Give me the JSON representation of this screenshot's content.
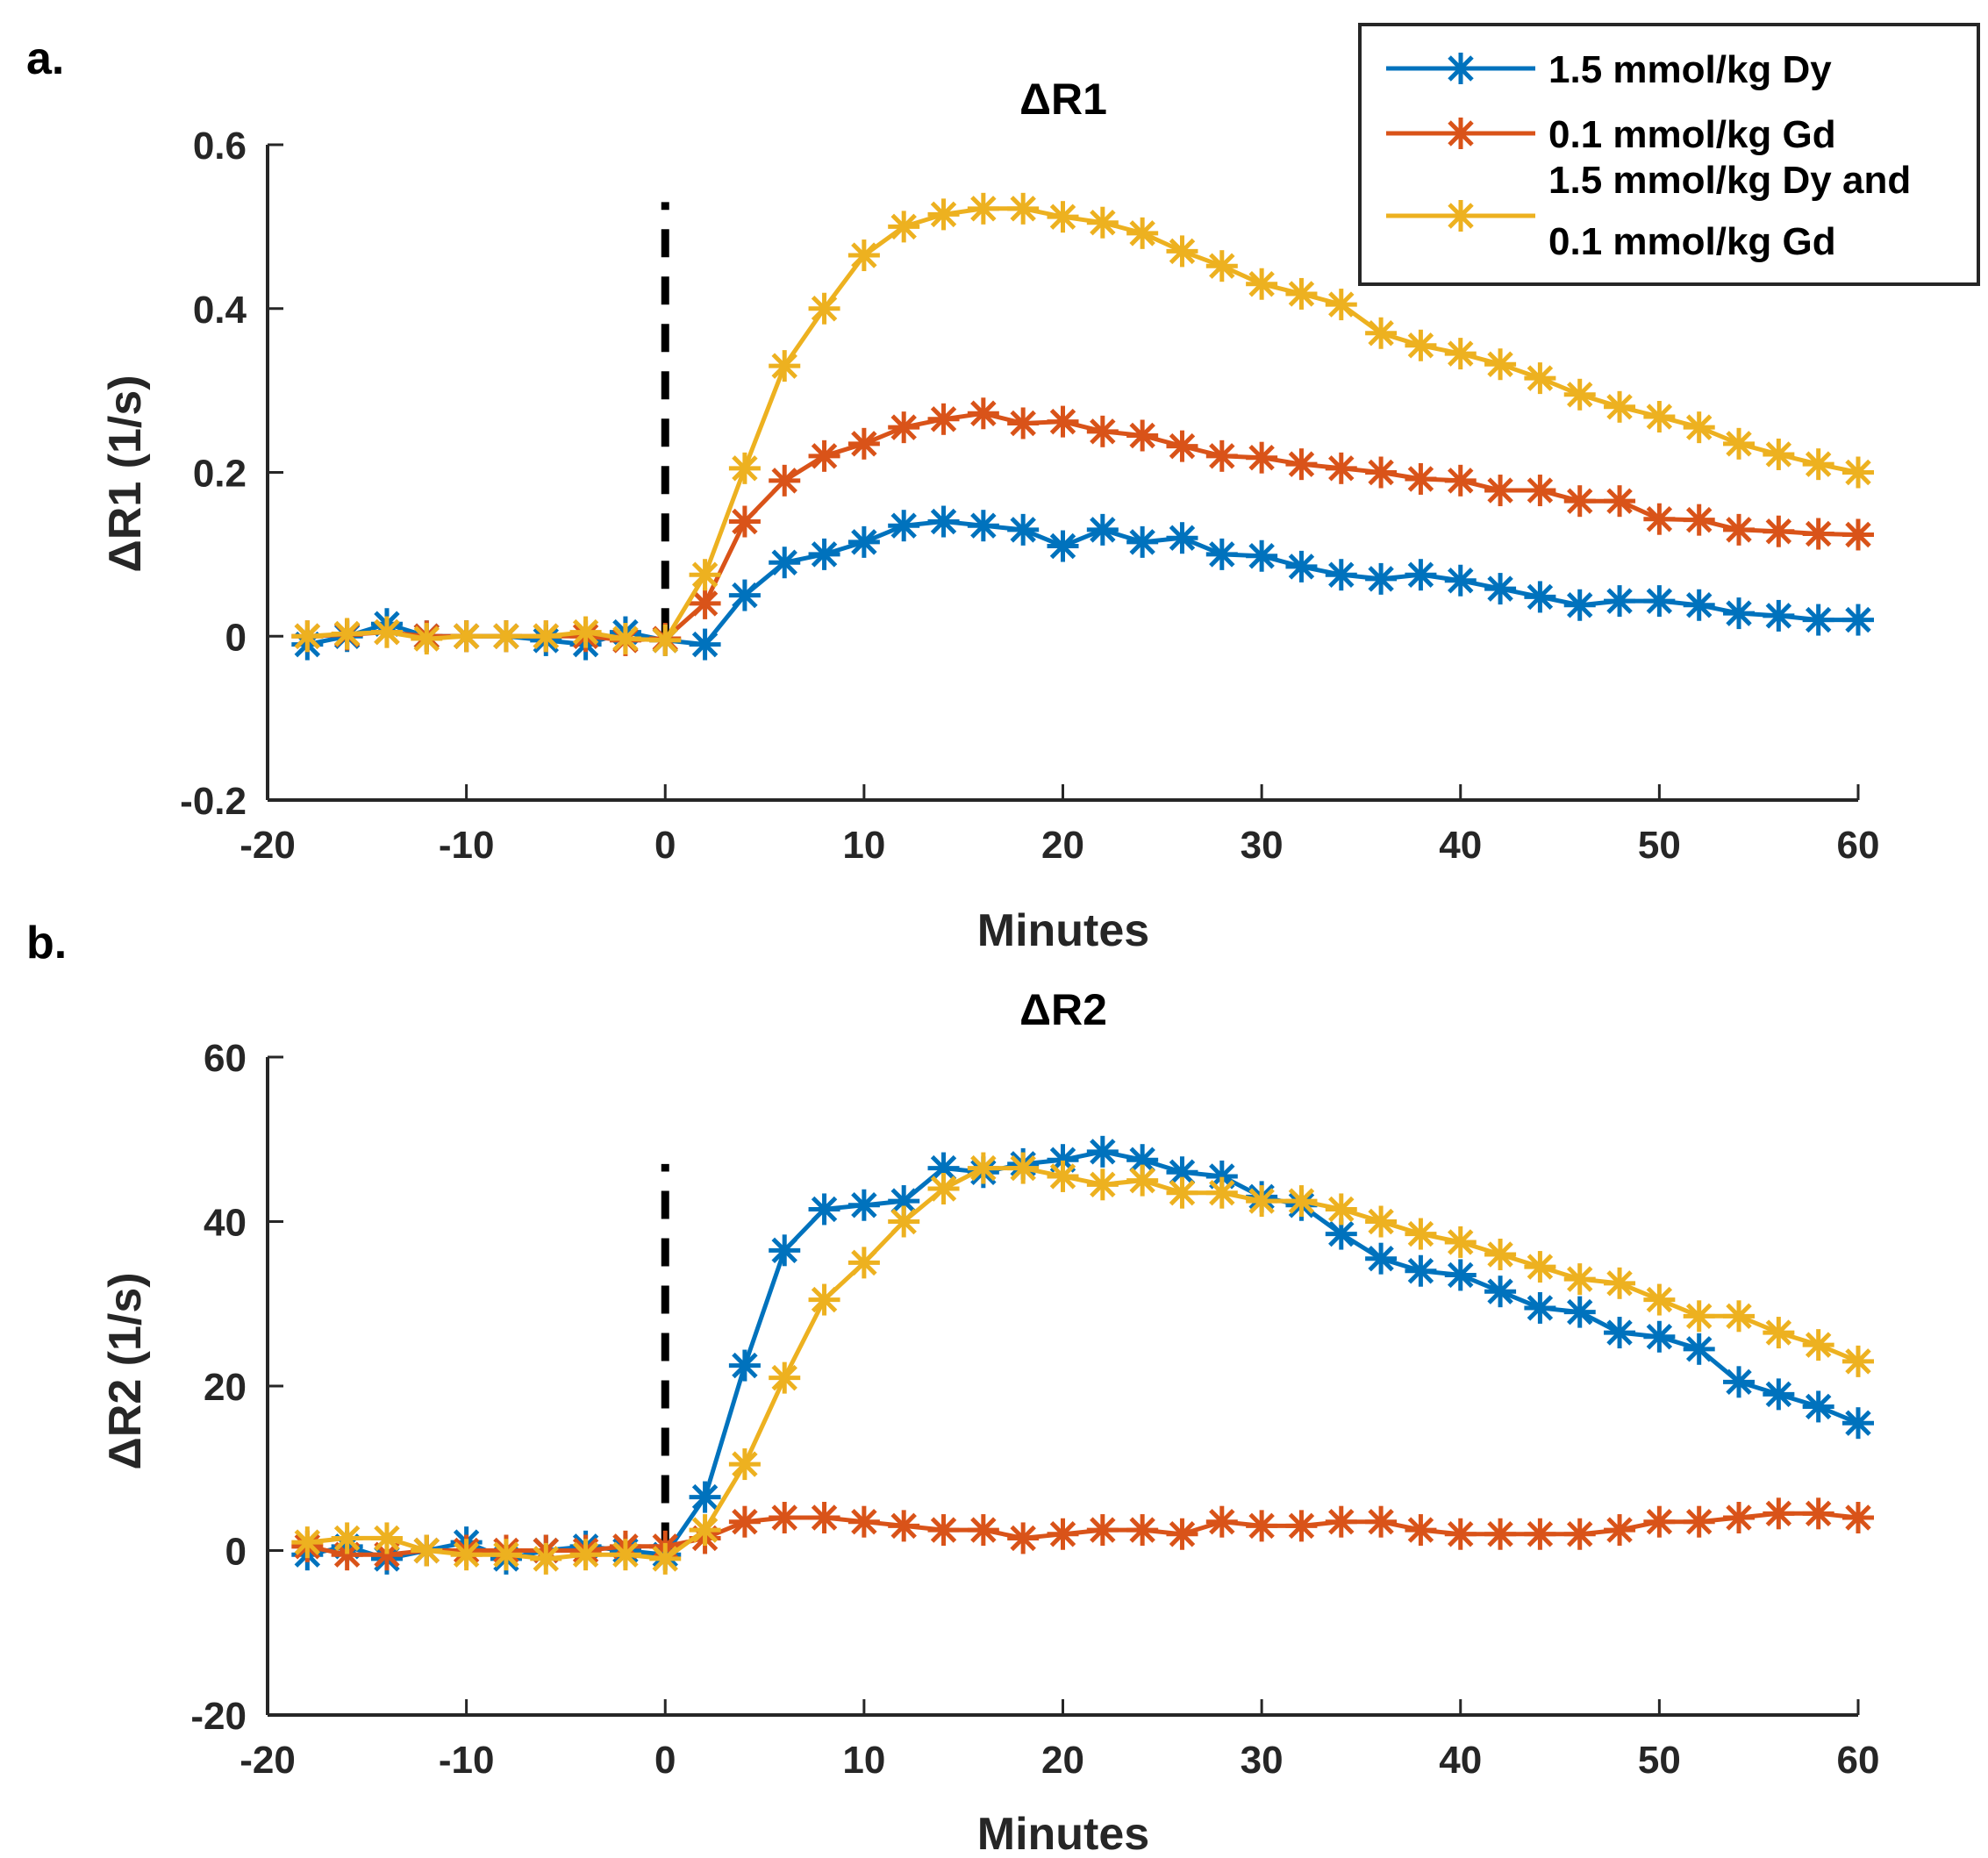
{
  "chart_data": [
    {
      "type": "line",
      "panel_label": "a.",
      "title": "ΔR1",
      "xlabel": "Minutes",
      "ylabel": "ΔR1 (1/s)",
      "xlim": [
        -20,
        60
      ],
      "ylim": [
        -0.2,
        0.6
      ],
      "xticks": [
        -20,
        -10,
        0,
        10,
        20,
        30,
        40,
        50,
        60
      ],
      "xtick_labels": [
        "-20",
        "-10",
        "0",
        "10",
        "20",
        "30",
        "40",
        "50",
        "60"
      ],
      "yticks": [
        -0.2,
        0,
        0.2,
        0.4,
        0.6
      ],
      "ytick_labels": [
        "-0.2",
        "0",
        "0.2",
        "0.4",
        "0.6"
      ],
      "grid": false,
      "marker": "asterisk",
      "annotation": {
        "type": "vertical-dashed-line",
        "x": 0,
        "y_from": 0,
        "y_to": 0.53
      },
      "x": [
        -18,
        -16,
        -14,
        -12,
        -10,
        -8,
        -6,
        -4,
        -2,
        0,
        2,
        4,
        6,
        8,
        10,
        12,
        14,
        16,
        18,
        20,
        22,
        24,
        26,
        28,
        30,
        32,
        34,
        36,
        38,
        40,
        42,
        44,
        46,
        48,
        50,
        52,
        54,
        56,
        58,
        60
      ],
      "series": [
        {
          "name": "1.5 mmol/kg Dy",
          "color": "#0072BD",
          "values": [
            -0.01,
            0,
            0.015,
            0,
            0,
            0,
            -0.005,
            -0.01,
            0.005,
            -0.005,
            -0.01,
            0.05,
            0.09,
            0.1,
            0.115,
            0.135,
            0.14,
            0.135,
            0.13,
            0.11,
            0.13,
            0.115,
            0.12,
            0.1,
            0.098,
            0.085,
            0.075,
            0.07,
            0.075,
            0.068,
            0.058,
            0.048,
            0.038,
            0.043,
            0.043,
            0.038,
            0.028,
            0.025,
            0.02,
            0.02
          ]
        },
        {
          "name": "0.1 mmol/kg Gd",
          "color": "#D95319",
          "values": [
            0,
            0.002,
            0.005,
            0,
            0,
            0,
            0,
            0,
            -0.005,
            -0.003,
            0.04,
            0.14,
            0.19,
            0.22,
            0.235,
            0.255,
            0.265,
            0.272,
            0.26,
            0.262,
            0.25,
            0.245,
            0.232,
            0.22,
            0.218,
            0.21,
            0.205,
            0.2,
            0.192,
            0.19,
            0.178,
            0.178,
            0.165,
            0.165,
            0.143,
            0.142,
            0.13,
            0.128,
            0.125,
            0.124
          ]
        },
        {
          "name": "1.5 mmol/kg Dy and 0.1 mmol/kg Gd",
          "color": "#EDB120",
          "values": [
            0,
            0.003,
            0.005,
            -0.003,
            0,
            0,
            0,
            0.005,
            -0.003,
            -0.005,
            0.075,
            0.205,
            0.33,
            0.4,
            0.465,
            0.5,
            0.515,
            0.522,
            0.522,
            0.512,
            0.505,
            0.492,
            0.47,
            0.452,
            0.43,
            0.418,
            0.405,
            0.37,
            0.355,
            0.345,
            0.332,
            0.315,
            0.295,
            0.28,
            0.268,
            0.255,
            0.235,
            0.222,
            0.21,
            0.2
          ]
        }
      ],
      "legend": {
        "placement": "top-right",
        "entries": [
          {
            "lines": [
              "1.5 mmol/kg Dy"
            ],
            "color": "#0072BD"
          },
          {
            "lines": [
              "0.1 mmol/kg Gd"
            ],
            "color": "#D95319"
          },
          {
            "lines": [
              "1.5 mmol/kg Dy and",
              "0.1 mmol/kg Gd"
            ],
            "color": "#EDB120"
          }
        ]
      }
    },
    {
      "type": "line",
      "panel_label": "b.",
      "title": "ΔR2",
      "xlabel": "Minutes",
      "ylabel": "ΔR2 (1/s)",
      "xlim": [
        -20,
        60
      ],
      "ylim": [
        -20,
        60
      ],
      "xticks": [
        -20,
        -10,
        0,
        10,
        20,
        30,
        40,
        50,
        60
      ],
      "xtick_labels": [
        "-20",
        "-10",
        "0",
        "10",
        "20",
        "30",
        "40",
        "50",
        "60"
      ],
      "yticks": [
        -20,
        0,
        20,
        40,
        60
      ],
      "ytick_labels": [
        "-20",
        "0",
        "20",
        "40",
        "60"
      ],
      "grid": false,
      "marker": "asterisk",
      "annotation": {
        "type": "vertical-dashed-line",
        "x": 0,
        "y_from": 0,
        "y_to": 47
      },
      "x": [
        -18,
        -16,
        -14,
        -12,
        -10,
        -8,
        -6,
        -4,
        -2,
        0,
        2,
        4,
        6,
        8,
        10,
        12,
        14,
        16,
        18,
        20,
        22,
        24,
        26,
        28,
        30,
        32,
        34,
        36,
        38,
        40,
        42,
        44,
        46,
        48,
        50,
        52,
        54,
        56,
        58,
        60
      ],
      "series": [
        {
          "name": "1.5 mmol/kg Dy",
          "color": "#0072BD",
          "values": [
            -0.5,
            0.5,
            -1,
            0,
            1,
            -1,
            0,
            0.5,
            0,
            -0.5,
            6.5,
            22.5,
            36.5,
            41.5,
            42,
            42.5,
            46.5,
            46,
            47,
            47.5,
            48.5,
            47.5,
            46,
            45.5,
            43,
            42,
            38.5,
            35.5,
            34,
            33.5,
            31.5,
            29.5,
            29,
            26.5,
            26,
            24.5,
            20.5,
            19,
            17.5,
            15.5
          ]
        },
        {
          "name": "0.1 mmol/kg Gd",
          "color": "#D95319",
          "values": [
            0.5,
            -0.5,
            -0.5,
            0,
            0,
            0,
            0,
            0,
            0.5,
            0.5,
            1.5,
            3.5,
            4,
            4,
            3.5,
            3,
            2.5,
            2.5,
            1.5,
            2,
            2.5,
            2.5,
            2,
            3.5,
            3,
            3,
            3.5,
            3.5,
            2.5,
            2,
            2,
            2,
            2,
            2.5,
            3.5,
            3.5,
            4,
            4.5,
            4.5,
            4
          ]
        },
        {
          "name": "1.5 mmol/kg Dy and 0.1 mmol/kg Gd",
          "color": "#EDB120",
          "values": [
            1,
            1.5,
            1.5,
            0,
            -0.5,
            -0.5,
            -1,
            -0.5,
            -0.5,
            -1,
            2.5,
            10.5,
            21,
            30.5,
            35,
            40,
            44,
            46.5,
            46.5,
            45.5,
            44.5,
            45,
            43.5,
            43.5,
            42.5,
            42.5,
            41.5,
            40,
            38.5,
            37.5,
            36,
            34.5,
            33,
            32.5,
            30.5,
            28.5,
            28.5,
            26.5,
            25,
            23
          ]
        }
      ]
    }
  ]
}
